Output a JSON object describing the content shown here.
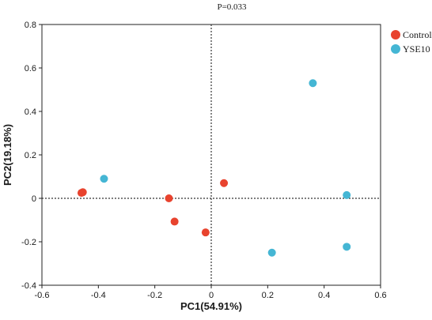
{
  "chart_data": {
    "type": "scatter",
    "title": "P=0.033",
    "xlabel": "PC1(54.91%)",
    "ylabel": "PC2(19.18%)",
    "xlim": [
      -0.6,
      0.6
    ],
    "ylim": [
      -0.4,
      0.8
    ],
    "xticks": [
      "-0.6",
      "-0.4",
      "-0.2",
      "0",
      "0.2",
      "0.4",
      "0.6"
    ],
    "yticks": [
      "-0.4",
      "-0.2",
      "0",
      "0.2",
      "0.4",
      "0.6",
      "0.8"
    ],
    "grid": false,
    "zero_lines": "dashed",
    "legend": "top-right outside",
    "series": [
      {
        "name": "Control",
        "color": "#e8432e",
        "points": [
          {
            "x": -0.46,
            "y": 0.025
          },
          {
            "x": -0.455,
            "y": 0.028
          },
          {
            "x": -0.15,
            "y": 0.0
          },
          {
            "x": -0.13,
            "y": -0.107
          },
          {
            "x": -0.02,
            "y": -0.157
          },
          {
            "x": 0.045,
            "y": 0.07
          }
        ]
      },
      {
        "name": "YSE10",
        "color": "#45b6d4",
        "points": [
          {
            "x": -0.38,
            "y": 0.09
          },
          {
            "x": 0.215,
            "y": -0.25
          },
          {
            "x": 0.36,
            "y": 0.53
          },
          {
            "x": 0.48,
            "y": 0.015
          },
          {
            "x": 0.48,
            "y": -0.223
          }
        ]
      }
    ]
  }
}
